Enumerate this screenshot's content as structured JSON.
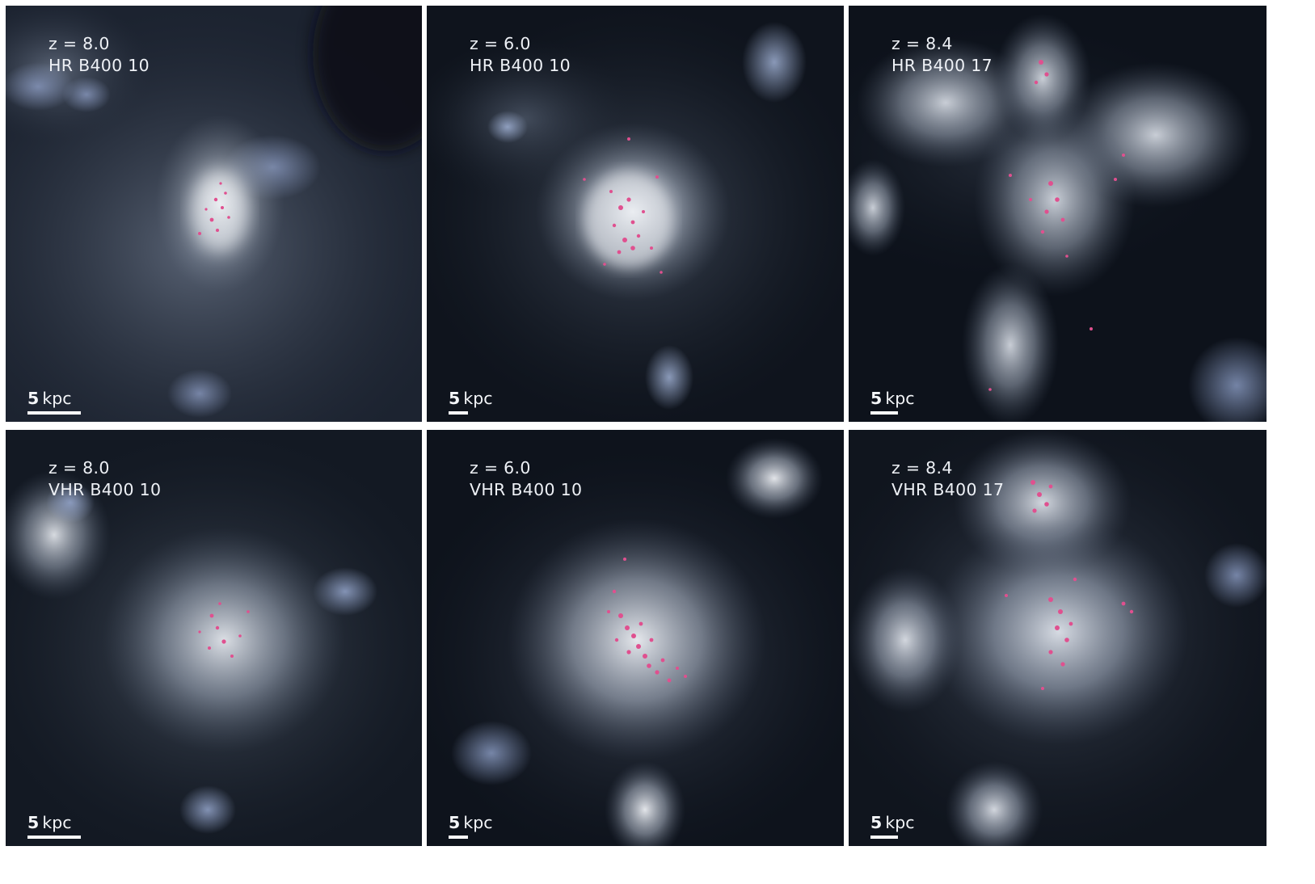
{
  "panels": [
    {
      "redshift": "z = 8.0",
      "name": "HR B400 10",
      "scale_num": "5",
      "scale_unit": "kpc"
    },
    {
      "redshift": "z = 6.0",
      "name": "HR B400 10",
      "scale_num": "5",
      "scale_unit": "kpc"
    },
    {
      "redshift": "z = 8.4",
      "name": "HR B400 17",
      "scale_num": "5",
      "scale_unit": "kpc"
    },
    {
      "redshift": "z = 8.0",
      "name": "VHR B400 10",
      "scale_num": "5",
      "scale_unit": "kpc"
    },
    {
      "redshift": "z = 6.0",
      "name": "VHR B400 10",
      "scale_num": "5",
      "scale_unit": "kpc"
    },
    {
      "redshift": "z = 8.4",
      "name": "VHR B400 17",
      "scale_num": "5",
      "scale_unit": "kpc"
    }
  ],
  "colors": {
    "background": "#0a0f18",
    "gas": "#c9d3e0",
    "gas_blue": "#8d9fc4",
    "stars": "#e0508f",
    "text": "#eef1f6"
  }
}
